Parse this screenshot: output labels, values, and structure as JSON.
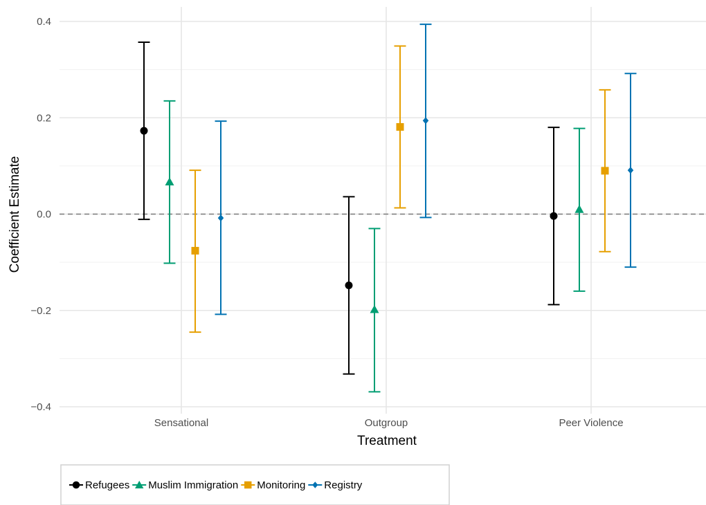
{
  "chart_data": {
    "type": "scatter",
    "subtype": "coefficient-errorbar",
    "title": "",
    "xlabel": "Treatment",
    "ylabel": "Coefficient Estimate",
    "categories": [
      "Sensational",
      "Outgroup",
      "Peer Violence"
    ],
    "ylim": [
      -0.4,
      0.4
    ],
    "yticks": [
      -0.4,
      -0.2,
      0.0,
      0.2,
      0.4
    ],
    "ytick_labels": [
      "−0.4",
      "−0.2",
      "0.0",
      "0.2",
      "0.4"
    ],
    "reference_line": 0.0,
    "grid": true,
    "legend_position": "bottom-left",
    "series": [
      {
        "name": "Refugees",
        "color": "#000000",
        "marker": "circle",
        "estimates": [
          0.173,
          -0.148,
          -0.004
        ],
        "lower": [
          -0.011,
          -0.332,
          -0.188
        ],
        "upper": [
          0.357,
          0.036,
          0.18
        ]
      },
      {
        "name": "Muslim Immigration",
        "color": "#009E73",
        "marker": "triangle",
        "estimates": [
          0.067,
          -0.198,
          0.01
        ],
        "lower": [
          -0.102,
          -0.369,
          -0.16
        ],
        "upper": [
          0.235,
          -0.03,
          0.178
        ]
      },
      {
        "name": "Monitoring",
        "color": "#E69F00",
        "marker": "square",
        "estimates": [
          -0.076,
          0.181,
          0.09
        ],
        "lower": [
          -0.245,
          0.013,
          -0.078
        ],
        "upper": [
          0.091,
          0.349,
          0.258
        ]
      },
      {
        "name": "Registry",
        "color": "#0072B2",
        "marker": "diamond",
        "estimates": [
          -0.008,
          0.194,
          0.091
        ],
        "lower": [
          -0.208,
          -0.007,
          -0.11
        ],
        "upper": [
          0.193,
          0.394,
          0.292
        ]
      }
    ]
  }
}
